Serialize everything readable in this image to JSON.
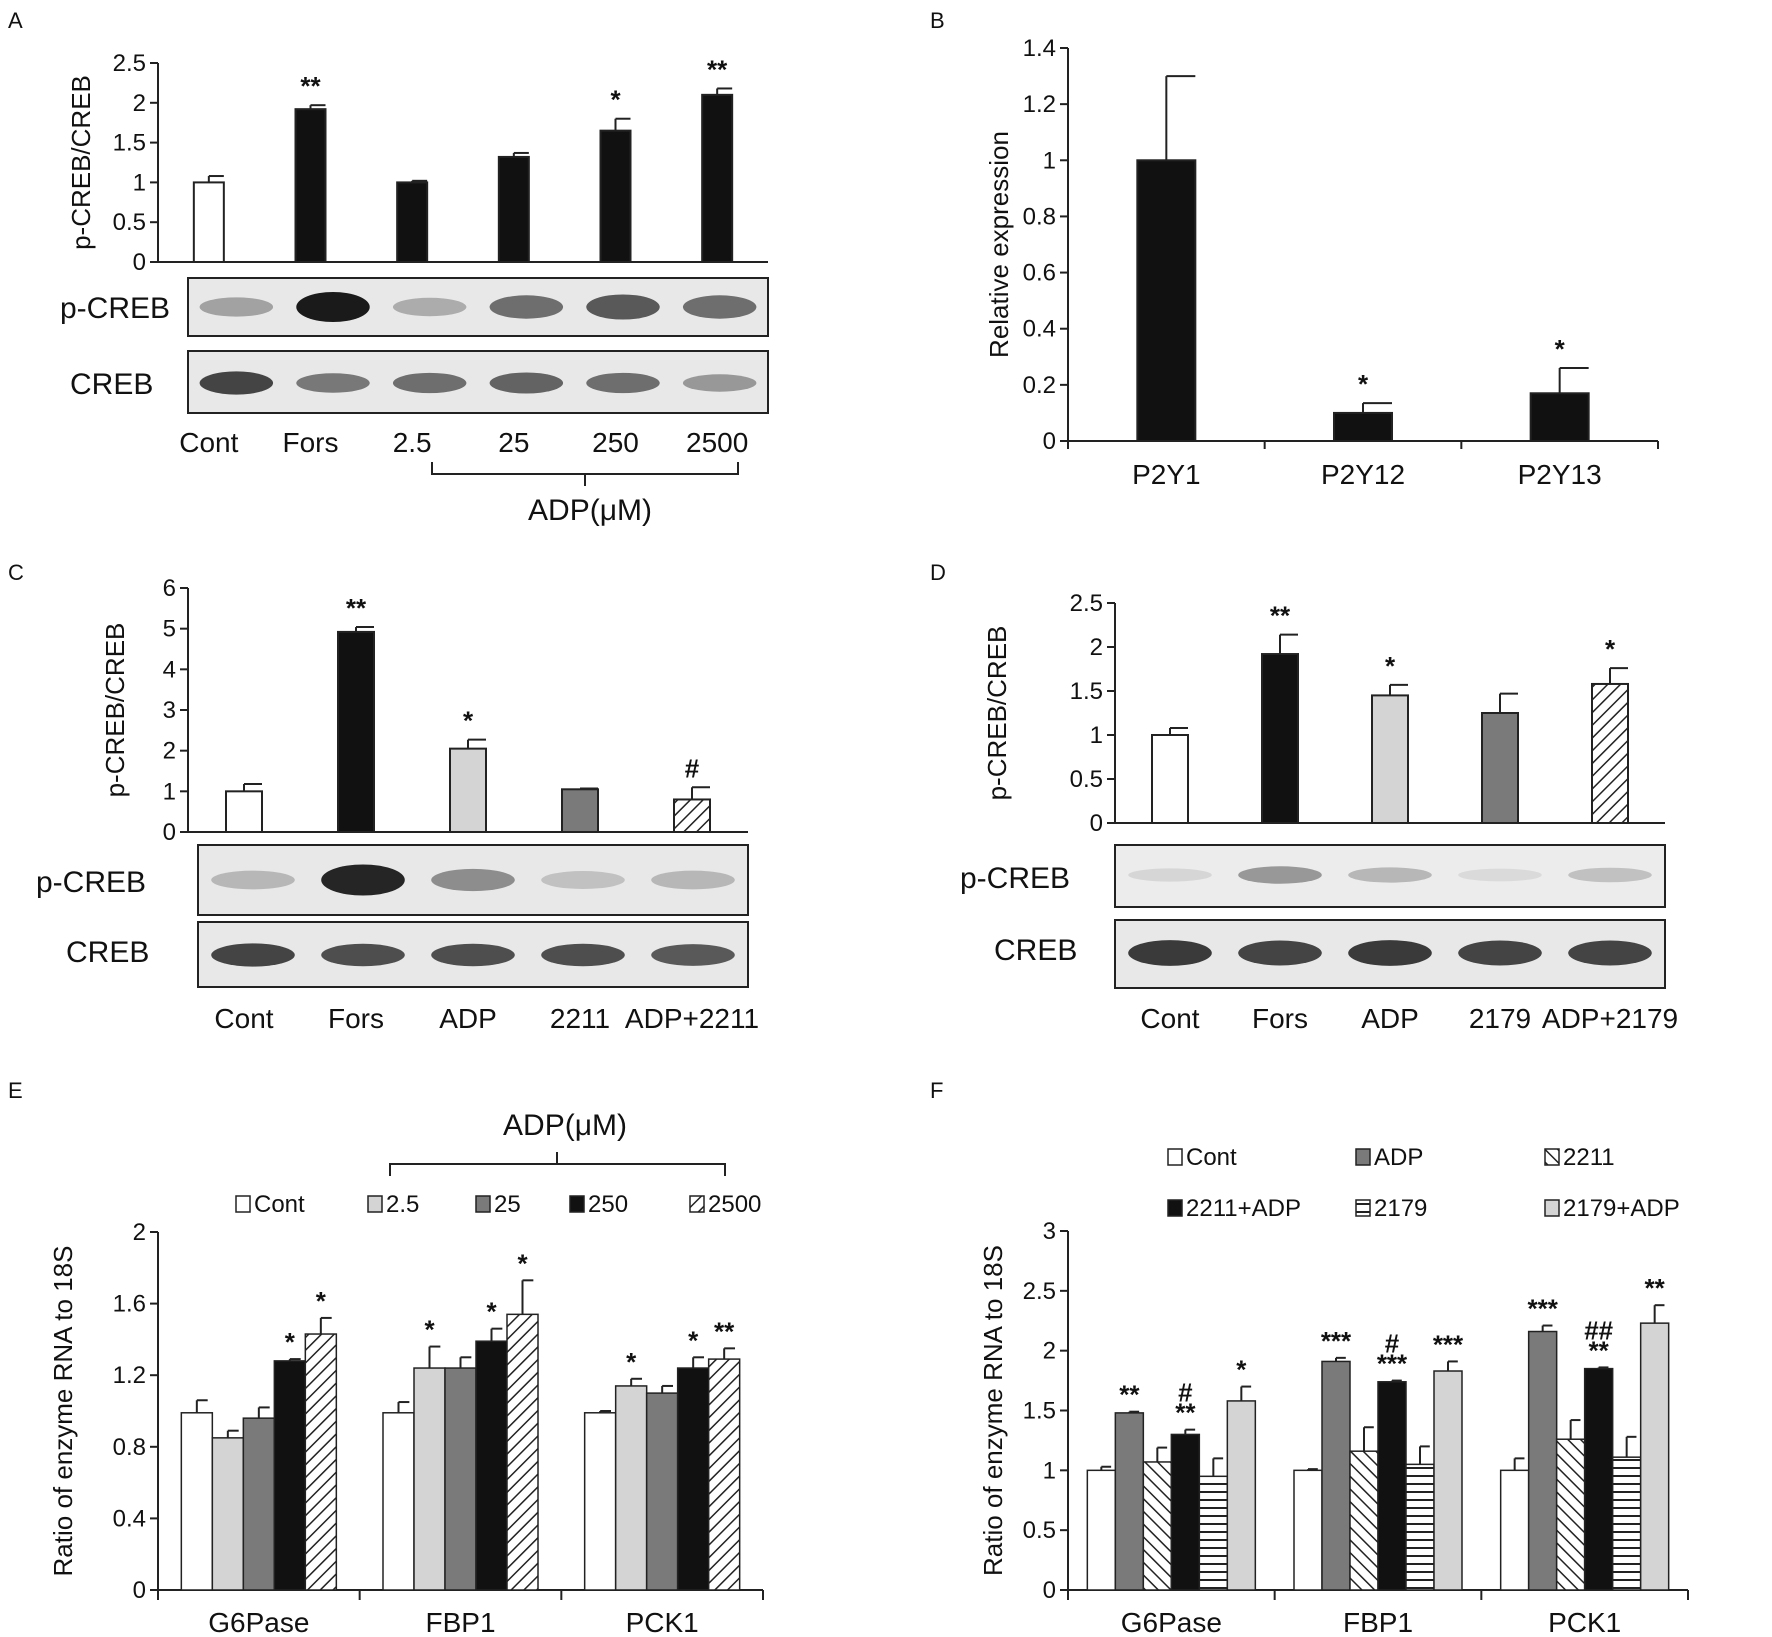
{
  "chart_data": [
    {
      "panel": "A",
      "type": "bar",
      "ylabel": "p-CREB/CREB",
      "yticks": [
        0,
        0.5,
        1,
        1.5,
        2,
        2.5
      ],
      "ylim": [
        0,
        2.5
      ],
      "categories": [
        "Cont",
        "Fors",
        "2.5",
        "25",
        "250",
        "2500"
      ],
      "values": [
        1.0,
        1.92,
        1.0,
        1.32,
        1.65,
        2.1
      ],
      "errors": [
        0.08,
        0.05,
        0.02,
        0.05,
        0.15,
        0.08
      ],
      "fills": [
        "white",
        "black",
        "black",
        "black",
        "black",
        "black"
      ],
      "sig": [
        "",
        "**",
        "",
        "",
        "*",
        "**"
      ],
      "blot_labels": [
        "p-CREB",
        "CREB"
      ],
      "group_label": "ADP(μM)",
      "group_from": 2,
      "group_to": 5,
      "blot_intensity": [
        [
          0.35,
          1.0,
          0.3,
          0.6,
          0.7,
          0.6
        ],
        [
          0.8,
          0.55,
          0.6,
          0.65,
          0.6,
          0.4
        ]
      ]
    },
    {
      "panel": "B",
      "type": "bar",
      "ylabel": "Relative expression",
      "yticks": [
        0,
        0.2,
        0.4,
        0.6,
        0.8,
        1,
        1.2,
        1.4
      ],
      "ylim": [
        0,
        1.4
      ],
      "categories": [
        "P2Y1",
        "P2Y12",
        "P2Y13"
      ],
      "values": [
        1.0,
        0.1,
        0.17
      ],
      "errors": [
        0.3,
        0.035,
        0.09
      ],
      "fills": [
        "black",
        "black",
        "black"
      ],
      "sig": [
        "",
        "*",
        "*"
      ]
    },
    {
      "panel": "C",
      "type": "bar",
      "ylabel": "p-CREB/CREB",
      "yticks": [
        0,
        1,
        2,
        3,
        4,
        5,
        6
      ],
      "ylim": [
        0,
        6
      ],
      "categories": [
        "Cont",
        "Fors",
        "ADP",
        "2211",
        "ADP+2211"
      ],
      "values": [
        1.0,
        4.92,
        2.05,
        1.05,
        0.8
      ],
      "errors": [
        0.18,
        0.12,
        0.22,
        0.02,
        0.3
      ],
      "fills": [
        "white",
        "black",
        "lightgray",
        "gray",
        "hatch"
      ],
      "sig": [
        "",
        "**",
        "*",
        "",
        "#"
      ],
      "blot_labels": [
        "p-CREB",
        "CREB"
      ],
      "blot_intensity": [
        [
          0.25,
          0.95,
          0.45,
          0.2,
          0.25
        ],
        [
          0.8,
          0.75,
          0.75,
          0.75,
          0.7
        ]
      ]
    },
    {
      "panel": "D",
      "type": "bar",
      "ylabel": "p-CREB/CREB",
      "yticks": [
        0,
        0.5,
        1,
        1.5,
        2,
        2.5
      ],
      "ylim": [
        0,
        2.5
      ],
      "categories": [
        "Cont",
        "Fors",
        "ADP",
        "2179",
        "ADP+2179"
      ],
      "values": [
        1.0,
        1.92,
        1.45,
        1.25,
        1.58
      ],
      "errors": [
        0.08,
        0.22,
        0.12,
        0.22,
        0.18
      ],
      "fills": [
        "white",
        "black",
        "lightgray",
        "gray",
        "hatch"
      ],
      "sig": [
        "",
        "**",
        "*",
        "",
        "*"
      ],
      "blot_labels": [
        "p-CREB",
        "CREB"
      ],
      "blot_intensity": [
        [
          0.1,
          0.4,
          0.25,
          0.08,
          0.2
        ],
        [
          0.85,
          0.8,
          0.85,
          0.8,
          0.8
        ]
      ]
    },
    {
      "panel": "E",
      "type": "bar",
      "ylabel": "Ratio of enzyme RNA to 18S",
      "yticks": [
        "0",
        "0.4",
        "0.8",
        "1.2",
        "1.6",
        "2"
      ],
      "ylim": [
        0,
        2
      ],
      "categories": [
        "G6Pase",
        "FBP1",
        "PCK1"
      ],
      "group_label": "ADP(μM)",
      "series": [
        {
          "name": "Cont",
          "fill": "white",
          "values": [
            0.99,
            0.99,
            0.99
          ],
          "errors": [
            0.07,
            0.06,
            0.01
          ],
          "sig": [
            "",
            "",
            ""
          ]
        },
        {
          "name": "2.5",
          "fill": "lightgray",
          "values": [
            0.85,
            1.24,
            1.14
          ],
          "errors": [
            0.04,
            0.12,
            0.04
          ],
          "sig": [
            "",
            "*",
            "*"
          ]
        },
        {
          "name": "25",
          "fill": "gray",
          "values": [
            0.96,
            1.24,
            1.1
          ],
          "errors": [
            0.06,
            0.06,
            0.04
          ],
          "sig": [
            "",
            "",
            ""
          ]
        },
        {
          "name": "250",
          "fill": "black",
          "values": [
            1.28,
            1.39,
            1.24
          ],
          "errors": [
            0.01,
            0.07,
            0.06
          ],
          "sig": [
            "*",
            "*",
            "*"
          ]
        },
        {
          "name": "2500",
          "fill": "hatch",
          "values": [
            1.43,
            1.54,
            1.29
          ],
          "errors": [
            0.09,
            0.19,
            0.06
          ],
          "sig": [
            "*",
            "*",
            "**"
          ]
        }
      ]
    },
    {
      "panel": "F",
      "type": "bar",
      "ylabel": "Ratio of enzyme RNA to 18S",
      "yticks": [
        "0",
        "0.5",
        "1",
        "1.5",
        "2",
        "2.5",
        "3"
      ],
      "ylim": [
        0,
        3
      ],
      "categories": [
        "G6Pase",
        "FBP1",
        "PCK1"
      ],
      "series": [
        {
          "name": "Cont",
          "fill": "white",
          "values": [
            1.0,
            1.0,
            1.0
          ],
          "errors": [
            0.03,
            0.01,
            0.1
          ],
          "sig": [
            "",
            "",
            ""
          ]
        },
        {
          "name": "ADP",
          "fill": "gray",
          "values": [
            1.48,
            1.91,
            2.16
          ],
          "errors": [
            0.01,
            0.03,
            0.05
          ],
          "sig": [
            "**",
            "***",
            "***"
          ]
        },
        {
          "name": "2211",
          "fill": "hatch-back",
          "values": [
            1.07,
            1.16,
            1.26
          ],
          "errors": [
            0.12,
            0.2,
            0.16
          ],
          "sig": [
            "",
            "",
            ""
          ]
        },
        {
          "name": "2211+ADP",
          "fill": "black",
          "values": [
            1.3,
            1.74,
            1.85
          ],
          "errors": [
            0.04,
            0.01,
            0.01
          ],
          "sig": [
            "#\n**",
            "#\n***",
            "##\n**"
          ]
        },
        {
          "name": "2179",
          "fill": "hstripe",
          "values": [
            0.95,
            1.05,
            1.11
          ],
          "errors": [
            0.15,
            0.15,
            0.17
          ],
          "sig": [
            "",
            "",
            ""
          ]
        },
        {
          "name": "2179+ADP",
          "fill": "lightgray",
          "values": [
            1.58,
            1.83,
            2.23
          ],
          "errors": [
            0.12,
            0.08,
            0.15
          ],
          "sig": [
            "*",
            "***",
            "**"
          ]
        }
      ]
    }
  ]
}
